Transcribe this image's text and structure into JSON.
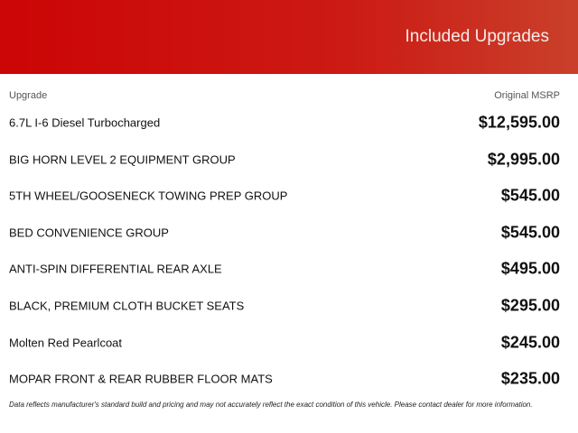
{
  "header": {
    "title": "Included Upgrades"
  },
  "columns": {
    "upgrade": "Upgrade",
    "msrp": "Original MSRP"
  },
  "upgrades": [
    {
      "name": "6.7L I-6 Diesel Turbocharged",
      "price": "$12,595.00"
    },
    {
      "name": "BIG HORN LEVEL 2 EQUIPMENT GROUP",
      "price": "$2,995.00"
    },
    {
      "name": "5TH WHEEL/GOOSENECK TOWING PREP GROUP",
      "price": "$545.00"
    },
    {
      "name": "BED CONVENIENCE GROUP",
      "price": "$545.00"
    },
    {
      "name": "ANTI-SPIN DIFFERENTIAL REAR AXLE",
      "price": "$495.00"
    },
    {
      "name": "BLACK, PREMIUM CLOTH BUCKET SEATS",
      "price": "$295.00"
    },
    {
      "name": "Molten Red Pearlcoat",
      "price": "$245.00"
    },
    {
      "name": "MOPAR FRONT & REAR RUBBER FLOOR MATS",
      "price": "$235.00"
    }
  ],
  "footer": {
    "disclaimer": "Data reflects manufacturer's standard build and pricing and may not accurately reflect the exact condition of this vehicle. Please contact dealer for more information."
  },
  "colors": {
    "header_start": "#cc0505",
    "header_end": "#c9402a"
  }
}
